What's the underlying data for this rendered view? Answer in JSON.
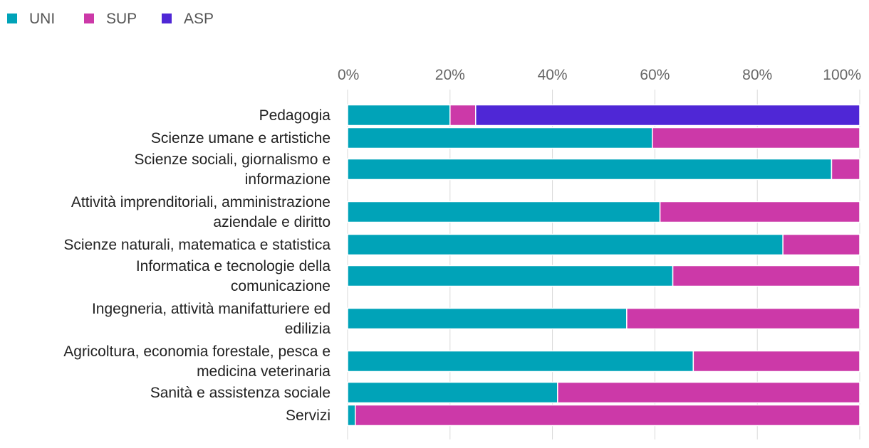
{
  "chart_data": {
    "type": "bar",
    "orientation": "horizontal",
    "stacked": true,
    "title": "",
    "xlabel": "",
    "ylabel": "",
    "xlim": [
      0,
      100
    ],
    "x_ticks": [
      "0%",
      "20%",
      "40%",
      "60%",
      "80%",
      "100%"
    ],
    "legend_position": "top-left",
    "grid": true,
    "categories": [
      [
        "Pedagogia"
      ],
      [
        "Scienze umane e artistiche"
      ],
      [
        "Scienze sociali, giornalismo e",
        "informazione"
      ],
      [
        "Attività imprenditoriali, amministrazione",
        "aziendale e diritto"
      ],
      [
        "Scienze naturali, matematica e statistica"
      ],
      [
        "Informatica e tecnologie della",
        "comunicazione"
      ],
      [
        "Ingegneria, attività manifatturiere ed",
        "edilizia"
      ],
      [
        "Agricoltura, economia forestale, pesca e",
        "medicina veterinaria"
      ],
      [
        "Sanità e assistenza sociale"
      ],
      [
        "Servizi"
      ]
    ],
    "series": [
      {
        "name": "UNI",
        "color": "#00a3b8",
        "values": [
          20,
          59.5,
          94.5,
          61,
          85,
          63.5,
          54.5,
          67.5,
          41,
          1.5
        ]
      },
      {
        "name": "SUP",
        "color": "#cc39a8",
        "values": [
          5,
          40.5,
          5.5,
          39,
          15,
          36.5,
          45.5,
          32.5,
          59,
          98.5
        ]
      },
      {
        "name": "ASP",
        "color": "#4f27d6",
        "values": [
          75,
          0,
          0,
          0,
          0,
          0,
          0,
          0,
          0,
          0
        ]
      }
    ]
  }
}
